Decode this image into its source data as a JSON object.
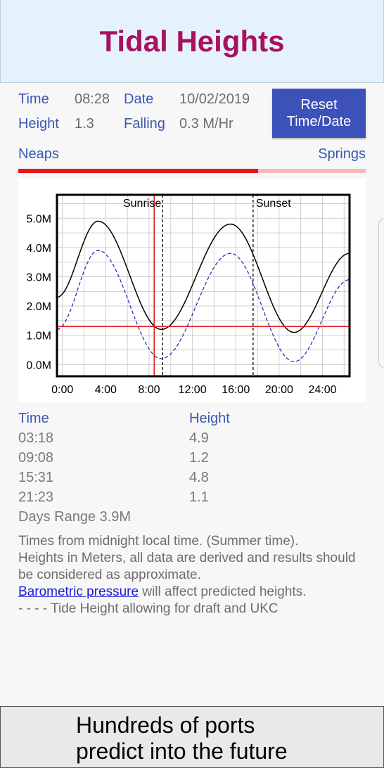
{
  "app": {
    "title": "Tidal Heights"
  },
  "info": {
    "time_label": "Time",
    "time_value": "08:28",
    "date_label": "Date",
    "date_value": "10/02/2019",
    "height_label": "Height",
    "height_value": "1.3",
    "trend_label": "Falling",
    "trend_value": "0.3 M/Hr",
    "reset_label_1": "Reset",
    "reset_label_2": "Time/Date"
  },
  "range": {
    "left_label": "Neaps",
    "right_label": "Springs",
    "level": 0.69
  },
  "colors": {
    "accent": "#3c52b8",
    "title": "#a8115f",
    "marker": "#e8161b",
    "draft": "#2233bb"
  },
  "chart_data": {
    "type": "line",
    "xlabel": "",
    "ylabel": "",
    "xlim": [
      -0.5,
      26.5
    ],
    "ylim": [
      -0.4,
      5.8
    ],
    "x_ticks": [
      "0:00",
      "4:00",
      "8:00",
      "12:00",
      "16:00",
      "20:00",
      "24:00"
    ],
    "y_ticks": [
      "0.0M",
      "1.0M",
      "2.0M",
      "3.0M",
      "4.0M",
      "5.0M"
    ],
    "grid": true,
    "series": [
      {
        "values_kind": "tide_extremes",
        "x": [
          -0.5,
          3.3,
          9.13,
          15.52,
          21.38,
          26.5
        ],
        "y": [
          2.3,
          4.9,
          1.2,
          4.8,
          1.1,
          3.8
        ],
        "style": "solid"
      },
      {
        "values_kind": "draft_adjusted",
        "x": [
          -0.5,
          3.3,
          9.13,
          15.52,
          21.38,
          26.5
        ],
        "y": [
          1.2,
          3.9,
          0.2,
          3.8,
          0.1,
          2.9
        ],
        "style": "dashed"
      }
    ],
    "current_time": 8.47,
    "current_height": 1.3,
    "annotations": [
      {
        "label": "Sunrise",
        "x": 9.25
      },
      {
        "label": "Sunset",
        "x": 17.6
      }
    ]
  },
  "table": {
    "time_header": "Time",
    "height_header": "Height",
    "rows": [
      {
        "time": "03:18",
        "height": "4.9"
      },
      {
        "time": "09:08",
        "height": "1.2"
      },
      {
        "time": "15:31",
        "height": "4.8"
      },
      {
        "time": "21:23",
        "height": "1.1"
      }
    ],
    "days_range": "Days Range 3.9M"
  },
  "notes": {
    "line1": "Times from midnight local time. (Summer time).",
    "line2": "Heights in Meters, all data are derived and results should be considered as approximate.",
    "link": "Barometric pressure",
    "line3_rest": " will affect predicted heights.",
    "line4": "- - - - Tide Height allowing for draft and UKC"
  },
  "promo": {
    "line1": "Hundreds of ports",
    "line2": "predict into the future"
  }
}
